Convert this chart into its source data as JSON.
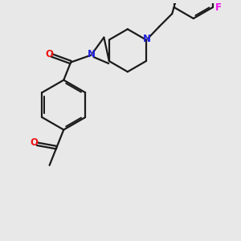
{
  "bg_color": "#e8e8e8",
  "bond_color": "#1a1a1a",
  "N_color": "#2020dd",
  "O_color": "#ee1111",
  "F_color": "#ee11ee",
  "lw": 1.6,
  "lw_inner": 1.4,
  "xlim": [
    0,
    10
  ],
  "ylim": [
    0,
    10
  ],
  "figsize": [
    3.0,
    3.0
  ],
  "dpi": 100
}
